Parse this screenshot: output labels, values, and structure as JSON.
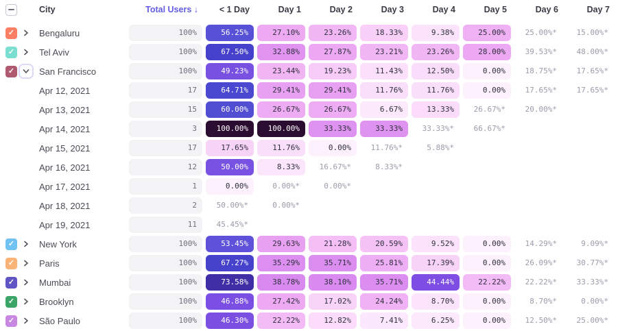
{
  "table": {
    "select_all_state": "indeterminate",
    "header": {
      "city_label": "City",
      "total_label": "Total Users ↓",
      "total_sorted": true,
      "day_columns": [
        "< 1 Day",
        "Day 1",
        "Day 2",
        "Day 3",
        "Day 4",
        "Day 5",
        "Day 6",
        "Day 7"
      ]
    },
    "icons": {
      "check": "✓"
    },
    "colors": {
      "sorted_header": "#635ce6",
      "header_text": "#3b3b46",
      "label_text": "#4b4b56",
      "estimate_text": "#9b9bab",
      "cell_dark_text": "#2f2f3d",
      "cell_light_text": "#ffffff",
      "total_pill_bg": "#f3f3f5",
      "total_pill_text": "#6e6e7e",
      "white_text_threshold": 43,
      "scale_stops": [
        [
          0,
          "#fdf1fd"
        ],
        [
          8,
          "#fce7fc"
        ],
        [
          13,
          "#fadcfa"
        ],
        [
          18,
          "#f8d2f8"
        ],
        [
          21,
          "#f4c0f5"
        ],
        [
          24,
          "#f0b3f4"
        ],
        [
          28,
          "#eca8f2"
        ],
        [
          31,
          "#e49af1"
        ],
        [
          34,
          "#dd91f0"
        ],
        [
          40,
          "#d788ef"
        ],
        [
          43,
          "#7f4ce4"
        ],
        [
          50,
          "#7852e2"
        ],
        [
          54,
          "#5b52d9"
        ],
        [
          58,
          "#5450d5"
        ],
        [
          62,
          "#4f4bd3"
        ],
        [
          66,
          "#4846d0"
        ],
        [
          70,
          "#4338c4"
        ],
        [
          75,
          "#3c2b9a"
        ],
        [
          85,
          "#341f63"
        ],
        [
          100,
          "#2c0d32"
        ]
      ]
    },
    "rows": [
      {
        "kind": "city",
        "label": "Bengaluru",
        "checked": true,
        "checkbox_color": "#f87f63",
        "expanded": false,
        "total": "100%",
        "cells": [
          "56.25%",
          "27.10%",
          "23.26%",
          "18.33%",
          "9.38%",
          "25.00%",
          "25.00%*",
          "15.00%*"
        ]
      },
      {
        "kind": "city",
        "label": "Tel Aviv",
        "checked": true,
        "checkbox_color": "#7adfd0",
        "expanded": false,
        "total": "100%",
        "cells": [
          "67.50%",
          "32.88%",
          "27.87%",
          "23.21%",
          "23.26%",
          "28.00%",
          "39.53%*",
          "48.00%*"
        ]
      },
      {
        "kind": "city",
        "label": "San Francisco",
        "checked": true,
        "checkbox_color": "#b05a70",
        "expanded": true,
        "total": "100%",
        "cells": [
          "49.23%",
          "23.44%",
          "19.23%",
          "11.43%",
          "12.50%",
          "0.00%",
          "18.75%*",
          "17.65%*"
        ]
      },
      {
        "kind": "date",
        "label": "Apr 12, 2021",
        "total": "17",
        "cells": [
          "64.71%",
          "29.41%",
          "29.41%",
          "11.76%",
          "11.76%",
          "0.00%",
          "17.65%*",
          "17.65%*"
        ]
      },
      {
        "kind": "date",
        "label": "Apr 13, 2021",
        "total": "15",
        "cells": [
          "60.00%",
          "26.67%",
          "26.67%",
          "6.67%",
          "13.33%",
          "26.67%*",
          "20.00%*",
          ""
        ]
      },
      {
        "kind": "date",
        "label": "Apr 14, 2021",
        "total": "3",
        "cells": [
          "100.00%",
          "100.00%",
          "33.33%",
          "33.33%",
          "33.33%*",
          "66.67%*",
          "",
          ""
        ]
      },
      {
        "kind": "date",
        "label": "Apr 15, 2021",
        "total": "17",
        "cells": [
          "17.65%",
          "11.76%",
          "0.00%",
          "11.76%*",
          "5.88%*",
          "",
          "",
          ""
        ]
      },
      {
        "kind": "date",
        "label": "Apr 16, 2021",
        "total": "12",
        "cells": [
          "50.00%",
          "8.33%",
          "16.67%*",
          "8.33%*",
          "",
          "",
          "",
          ""
        ]
      },
      {
        "kind": "date",
        "label": "Apr 17, 2021",
        "total": "1",
        "cells": [
          "0.00%",
          "0.00%*",
          "0.00%*",
          "",
          "",
          "",
          "",
          ""
        ]
      },
      {
        "kind": "date",
        "label": "Apr 18, 2021",
        "total": "2",
        "cells": [
          "50.00%*",
          "0.00%*",
          "",
          "",
          "",
          "",
          "",
          ""
        ]
      },
      {
        "kind": "date",
        "label": "Apr 19, 2021",
        "total": "11",
        "cells": [
          "45.45%*",
          "",
          "",
          "",
          "",
          "",
          "",
          ""
        ]
      },
      {
        "kind": "city",
        "label": "New York",
        "checked": true,
        "checkbox_color": "#70c2f2",
        "expanded": false,
        "total": "100%",
        "cells": [
          "53.45%",
          "29.63%",
          "21.28%",
          "20.59%",
          "9.52%",
          "0.00%",
          "14.29%*",
          "9.09%*"
        ]
      },
      {
        "kind": "city",
        "label": "Paris",
        "checked": true,
        "checkbox_color": "#f9b377",
        "expanded": false,
        "total": "100%",
        "cells": [
          "67.27%",
          "35.29%",
          "35.71%",
          "25.81%",
          "17.39%",
          "0.00%",
          "26.09%*",
          "30.77%*"
        ]
      },
      {
        "kind": "city",
        "label": "Mumbai",
        "checked": true,
        "checkbox_color": "#5f55c5",
        "expanded": false,
        "total": "100%",
        "cells": [
          "73.58%",
          "38.78%",
          "38.10%",
          "35.71%",
          "44.44%",
          "22.22%",
          "22.22%*",
          "33.33%*"
        ]
      },
      {
        "kind": "city",
        "label": "Brooklyn",
        "checked": true,
        "checkbox_color": "#3aa566",
        "expanded": false,
        "total": "100%",
        "cells": [
          "46.88%",
          "27.42%",
          "17.02%",
          "24.24%",
          "8.70%",
          "0.00%",
          "8.70%*",
          "0.00%*"
        ]
      },
      {
        "kind": "city",
        "label": "São Paulo",
        "checked": true,
        "checkbox_color": "#c887e0",
        "expanded": false,
        "total": "100%",
        "cells": [
          "46.30%",
          "22.22%",
          "12.82%",
          "7.41%",
          "6.25%",
          "0.00%",
          "12.50%*",
          "25.00%*"
        ]
      }
    ]
  }
}
